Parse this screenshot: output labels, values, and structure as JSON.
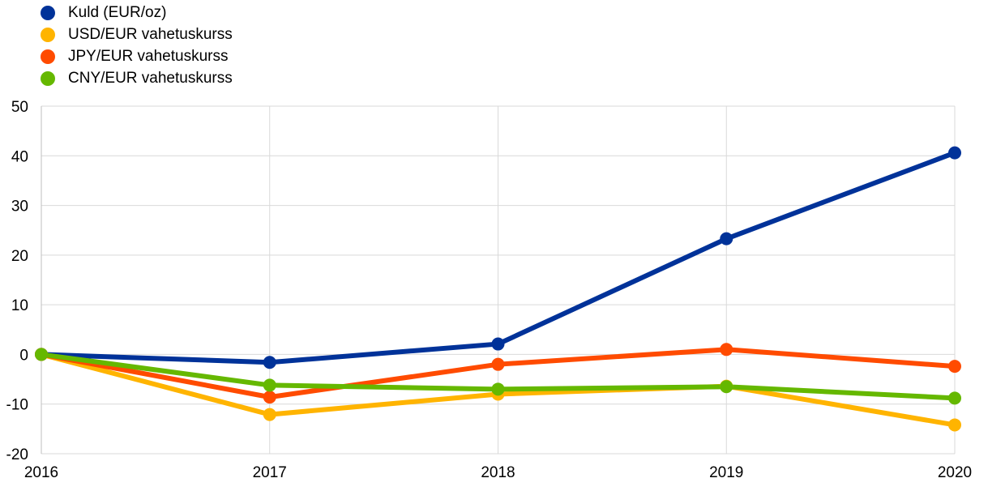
{
  "chart_data": {
    "type": "line",
    "x": [
      "2016",
      "2017",
      "2018",
      "2019",
      "2020"
    ],
    "series": [
      {
        "name": "Kuld (EUR/oz)",
        "color": "#003299",
        "values": [
          0,
          -1.6,
          2.1,
          23.3,
          40.6
        ]
      },
      {
        "name": "USD/EUR vahetuskurss",
        "color": "#FFB400",
        "values": [
          0,
          -12.1,
          -8.0,
          -6.4,
          -14.2
        ]
      },
      {
        "name": "JPY/EUR vahetuskurss",
        "color": "#FF4B00",
        "values": [
          0,
          -8.6,
          -2.0,
          1.0,
          -2.4
        ]
      },
      {
        "name": "CNY/EUR vahetuskurss",
        "color": "#65B800",
        "values": [
          0,
          -6.2,
          -7.0,
          -6.5,
          -8.8
        ]
      }
    ],
    "ylim": [
      -20,
      50
    ],
    "yticks": [
      50,
      40,
      30,
      20,
      10,
      0,
      -10,
      -20
    ],
    "grid": true,
    "legend": "top-left",
    "xlabel": "",
    "ylabel": ""
  }
}
